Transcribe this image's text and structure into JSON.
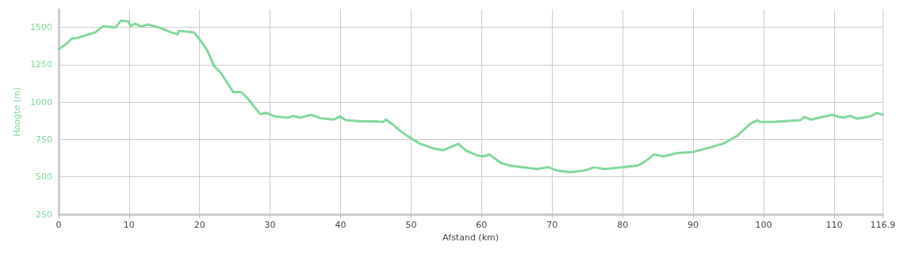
{
  "chart_data": {
    "type": "line",
    "xlabel": "Afstand (km)",
    "ylabel": "Hoogte (m)",
    "xlim": [
      0,
      116.9
    ],
    "xticks": [
      0,
      10,
      20,
      30,
      40,
      50,
      60,
      70,
      80,
      90,
      100,
      110,
      116.9
    ],
    "ylim": [
      250,
      1620
    ],
    "yticks": [
      250,
      500,
      750,
      1000,
      1250,
      1500
    ],
    "grid": true,
    "marker": "none",
    "line_style": "solid",
    "series": [
      {
        "color": "#80d99c",
        "x": [
          0,
          1.2,
          1.9,
          2.7,
          4.1,
          5.2,
          6.3,
          8.1,
          8.8,
          9.9,
          10.2,
          10.9,
          11.7,
          12.6,
          14.2,
          16.0,
          16.9,
          17.1,
          19.2,
          19.9,
          21.0,
          22.1,
          23.0,
          24.3,
          24.8,
          25.9,
          26.8,
          28.6,
          29.5,
          30.7,
          32.5,
          33.3,
          34.3,
          35.8,
          37.2,
          39.0,
          39.9,
          40.8,
          43.0,
          44.8,
          46.0,
          46.4,
          47.3,
          48.4,
          49.5,
          51.3,
          53.1,
          54.5,
          56.0,
          56.7,
          57.8,
          59.5,
          60.3,
          61.1,
          61.9,
          62.8,
          63.9,
          66.0,
          67.9,
          69.4,
          70.6,
          72.5,
          74.6,
          75.9,
          77.5,
          80.1,
          82.2,
          83.1,
          83.7,
          84.4,
          85.8,
          87.6,
          90.0,
          92.6,
          94.5,
          96.3,
          98.1,
          99.1,
          99.5,
          101.7,
          105.2,
          105.8,
          106.7,
          109.7,
          111.2,
          112.3,
          113.2,
          115.2,
          116.0,
          116.9
        ],
        "values": [
          1353,
          1394,
          1426,
          1430,
          1451,
          1467,
          1508,
          1500,
          1544,
          1541,
          1510,
          1525,
          1505,
          1520,
          1500,
          1467,
          1454,
          1477,
          1467,
          1426,
          1353,
          1239,
          1198,
          1100,
          1067,
          1067,
          1026,
          920,
          928,
          904,
          896,
          908,
          896,
          915,
          892,
          883,
          904,
          879,
          871,
          871,
          867,
          883,
          855,
          810,
          773,
          721,
          691,
          678,
          707,
          721,
          675,
          642,
          637,
          650,
          621,
          593,
          577,
          564,
          553,
          565,
          544,
          532,
          542,
          564,
          553,
          565,
          577,
          601,
          621,
          650,
          637,
          659,
          667,
          699,
          727,
          776,
          855,
          879,
          867,
          869,
          879,
          901,
          883,
          915,
          896,
          908,
          889,
          906,
          928,
          916
        ]
      }
    ]
  }
}
